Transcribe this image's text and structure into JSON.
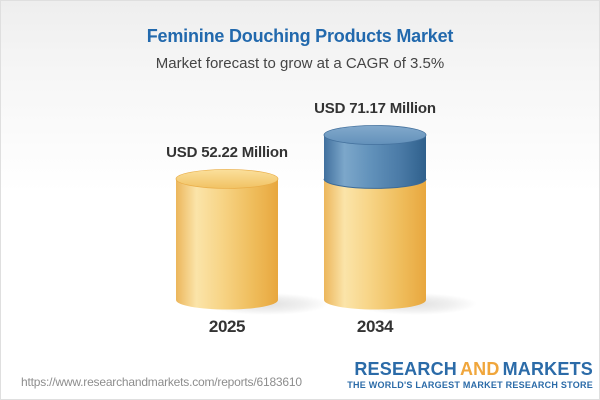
{
  "header": {
    "title": "Feminine Douching Products Market",
    "subtitle": "Market forecast to grow at a CAGR of 3.5%"
  },
  "chart_data": {
    "type": "bar",
    "variant": "3d-cylinder",
    "title": "Feminine Douching Products Market",
    "subtitle": "Market forecast to grow at a CAGR of 3.5%",
    "unit": "USD Million",
    "categories": [
      "2025",
      "2034"
    ],
    "values": [
      52.22,
      71.17
    ],
    "value_labels": [
      "USD 52.22 Million",
      "USD 71.17 Million"
    ],
    "base_value": 52.22,
    "growth_segment_value": 18.95,
    "cagr_pct": 3.5,
    "axes": "none",
    "grid": false,
    "legend": "none",
    "colors": {
      "base_segment_gold": "#f5cf7f",
      "growth_segment_blue": "#5f8fb8",
      "label_text": "#333333"
    }
  },
  "footer": {
    "url": "https://www.researchandmarkets.com/reports/6183610",
    "logo": {
      "word1": "RESEARCH",
      "word2": "AND",
      "word3": "MARKETS",
      "tagline": "THE WORLD'S LARGEST MARKET RESEARCH STORE",
      "blue": "#2b6ba8",
      "orange": "#f0a63c"
    }
  },
  "theme": {
    "title_color": "#2269ad",
    "subtitle_color": "#454545",
    "background_top": "#eeeeee",
    "border_color": "#dfdfdf"
  }
}
